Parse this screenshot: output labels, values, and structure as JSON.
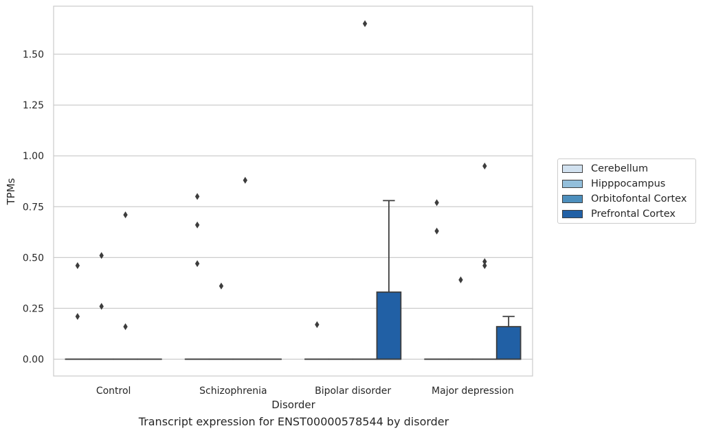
{
  "caption": "Transcript expression for ENST00000578544 by disorder",
  "legend": [
    {
      "label": "Cerebellum",
      "color": "#d1e1ef"
    },
    {
      "label": "Hipppocampus",
      "color": "#93bfdb"
    },
    {
      "label": "Orbitofontal Cortex",
      "color": "#4d8fbd"
    },
    {
      "label": "Prefrontal Cortex",
      "color": "#2160a5"
    }
  ],
  "chart_data": {
    "type": "box",
    "title": "",
    "xlabel": "Disorder",
    "ylabel": "TPMs",
    "ylim": [
      -0.08,
      1.74
    ],
    "yticks": [
      "0.00",
      "0.25",
      "0.50",
      "0.75",
      "1.00",
      "1.25",
      "1.50"
    ],
    "categories": [
      "Control",
      "Schizophrenia",
      "Bipolar disorder",
      "Major depression"
    ],
    "grid": "horizontal",
    "legend_position": "right",
    "series": [
      {
        "name": "Cerebellum",
        "color": "#d1e1ef",
        "boxes": [
          {
            "q1": 0,
            "median": 0,
            "q3": 0,
            "whislo": 0,
            "whishi": 0,
            "fliers": [
              0.21,
              0.46
            ]
          },
          {
            "q1": 0,
            "median": 0,
            "q3": 0,
            "whislo": 0,
            "whishi": 0,
            "fliers": [
              0.47,
              0.66,
              0.8
            ]
          },
          {
            "q1": 0,
            "median": 0,
            "q3": 0,
            "whislo": 0,
            "whishi": 0,
            "fliers": [
              0.17
            ]
          },
          {
            "q1": 0,
            "median": 0,
            "q3": 0,
            "whislo": 0,
            "whishi": 0,
            "fliers": [
              0.63,
              0.77
            ]
          }
        ]
      },
      {
        "name": "Hipppocampus",
        "color": "#93bfdb",
        "boxes": [
          {
            "q1": 0,
            "median": 0,
            "q3": 0,
            "whislo": 0,
            "whishi": 0,
            "fliers": [
              0.26,
              0.51
            ]
          },
          {
            "q1": 0,
            "median": 0,
            "q3": 0,
            "whislo": 0,
            "whishi": 0,
            "fliers": [
              0.36
            ]
          },
          {
            "q1": 0,
            "median": 0,
            "q3": 0,
            "whislo": 0,
            "whishi": 0,
            "fliers": []
          },
          {
            "q1": 0,
            "median": 0,
            "q3": 0,
            "whislo": 0,
            "whishi": 0,
            "fliers": [
              0.39
            ]
          }
        ]
      },
      {
        "name": "Orbitofontal Cortex",
        "color": "#4d8fbd",
        "boxes": [
          {
            "q1": 0,
            "median": 0,
            "q3": 0,
            "whislo": 0,
            "whishi": 0,
            "fliers": [
              0.16,
              0.71
            ]
          },
          {
            "q1": 0,
            "median": 0,
            "q3": 0,
            "whislo": 0,
            "whishi": 0,
            "fliers": [
              0.88
            ]
          },
          {
            "q1": 0,
            "median": 0,
            "q3": 0,
            "whislo": 0,
            "whishi": 0,
            "fliers": [
              1.65
            ]
          },
          {
            "q1": 0,
            "median": 0,
            "q3": 0,
            "whislo": 0,
            "whishi": 0,
            "fliers": [
              0.46,
              0.48,
              0.95
            ]
          }
        ]
      },
      {
        "name": "Prefrontal Cortex",
        "color": "#2160a5",
        "boxes": [
          {
            "q1": 0,
            "median": 0,
            "q3": 0,
            "whislo": 0,
            "whishi": 0,
            "fliers": []
          },
          {
            "q1": 0,
            "median": 0,
            "q3": 0,
            "whislo": 0,
            "whishi": 0,
            "fliers": []
          },
          {
            "q1": 0,
            "median": 0,
            "q3": 0.33,
            "whislo": 0,
            "whishi": 0.78,
            "fliers": []
          },
          {
            "q1": 0,
            "median": 0,
            "q3": 0.16,
            "whislo": 0,
            "whishi": 0.21,
            "fliers": []
          }
        ]
      }
    ]
  }
}
